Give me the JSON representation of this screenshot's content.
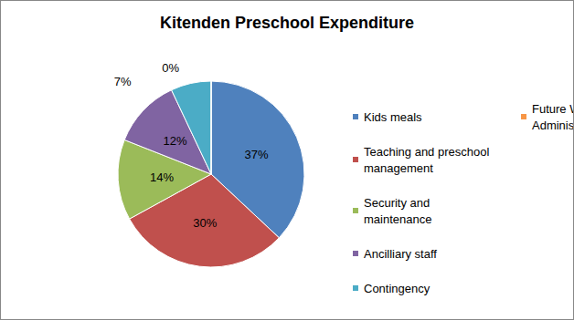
{
  "chart_data": {
    "type": "pie",
    "title": "Kitenden Preschool Expenditure",
    "categories": [
      "Kids meals",
      "Teaching and preschool management",
      "Security and maintenance",
      "Ancilliary staff",
      "Contingency",
      "Future Warriors Project Administration"
    ],
    "values": [
      37,
      30,
      14,
      12,
      7,
      0
    ],
    "value_labels": [
      "37%",
      "30%",
      "14%",
      "12%",
      "7%",
      "0%"
    ],
    "colors": [
      "#4f81bd",
      "#c0504d",
      "#9bbb59",
      "#8064a2",
      "#4bacc6",
      "#f79646"
    ],
    "data_labels": true,
    "legend": "right"
  }
}
